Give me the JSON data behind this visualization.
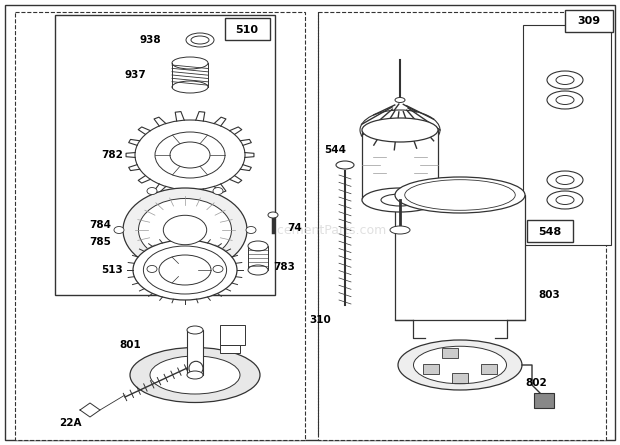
{
  "bg_color": "#ffffff",
  "gray": "#333333",
  "lgray": "#999999",
  "watermark": "eReplacementParts.com",
  "figsize": [
    6.2,
    4.45
  ],
  "dpi": 100
}
